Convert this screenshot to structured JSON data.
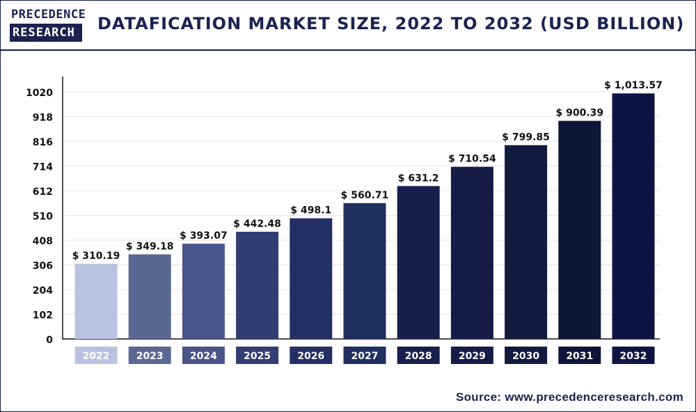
{
  "header": {
    "logo_line1": "PRECEDENCE",
    "logo_line2": "RESEARCH",
    "title": "DATAFICATION MARKET SIZE, 2022 TO 2032 (USD BILLION)"
  },
  "footer": {
    "source": "Source: www.precedenceresearch.com"
  },
  "colors": {
    "brand_navy": "#1b2350",
    "bars": [
      "#b9c3e0",
      "#5b6793",
      "#49558a",
      "#313d73",
      "#243064",
      "#1f2f5f",
      "#17204c",
      "#141c47",
      "#111a3f",
      "#0d1638",
      "#0c1543"
    ]
  },
  "chart_data": {
    "type": "bar",
    "title": "DATAFICATION MARKET SIZE, 2022 TO 2032 (USD BILLION)",
    "categories": [
      "2022",
      "2023",
      "2024",
      "2025",
      "2026",
      "2027",
      "2028",
      "2029",
      "2030",
      "2031",
      "2032"
    ],
    "values": [
      310.19,
      349.18,
      393.07,
      442.48,
      498.1,
      560.71,
      631.2,
      710.54,
      799.85,
      900.39,
      1013.57
    ],
    "data_labels": [
      "$ 310.19",
      "$ 349.18",
      "$ 393.07",
      "$ 442.48",
      "$ 498.1",
      "$ 560.71",
      "$ 631.2",
      "$ 710.54",
      "$ 799.85",
      "$ 900.39",
      "$ 1,013.57"
    ],
    "yticks": [
      0,
      102,
      204,
      306,
      408,
      510,
      612,
      714,
      816,
      918,
      1020
    ],
    "ylim": [
      0,
      1020
    ],
    "xlabel": "",
    "ylabel": "",
    "grid": true,
    "legend": "none"
  }
}
